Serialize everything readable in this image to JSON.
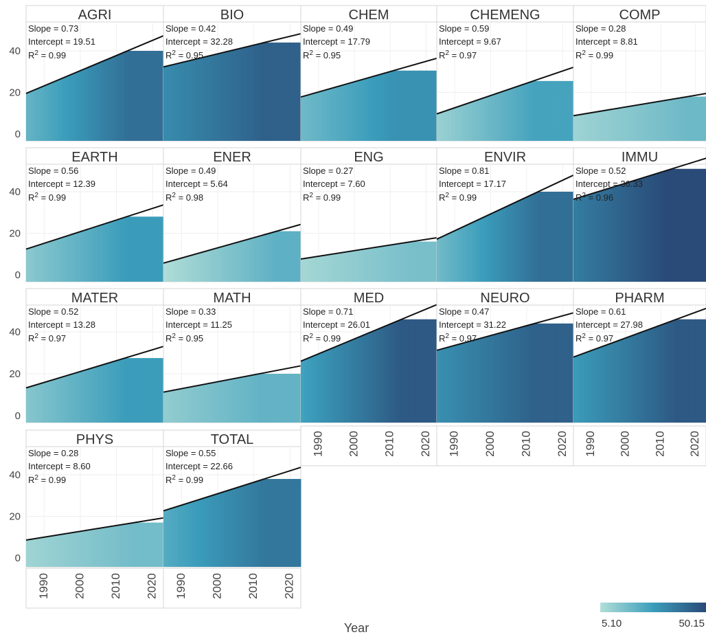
{
  "chart_data": {
    "type": "bar",
    "xlabel": "Year",
    "ylabel": "",
    "x_range": [
      1985,
      2023
    ],
    "ylim": [
      -3,
      55
    ],
    "y_ticks": [
      0,
      20,
      40
    ],
    "x_ticks": [
      1990,
      2000,
      2010,
      2020
    ],
    "stat_labels": {
      "slope": "Slope = ",
      "intercept": "Intercept = ",
      "r2_prefix": "R",
      "r2_sup": "2",
      "r2_suffix": " = "
    },
    "color_scale": {
      "min": 5.1,
      "max": 50.15,
      "min_label": "5.10",
      "max_label": "50.15",
      "low_color": "#b2ded8",
      "mid_color": "#3b9dbb",
      "high_color": "#2a4a78"
    },
    "panels": [
      {
        "name": "AGRI",
        "slope": "0.73",
        "intercept": "19.51",
        "r2": "0.99",
        "m": 0.73,
        "b": 19.51,
        "plateau": 40
      },
      {
        "name": "BIO",
        "slope": "0.42",
        "intercept": "32.28",
        "r2": "0.95",
        "m": 0.42,
        "b": 32.28,
        "plateau": 44
      },
      {
        "name": "CHEM",
        "slope": "0.49",
        "intercept": "17.79",
        "r2": "0.95",
        "m": 0.49,
        "b": 17.79,
        "plateau": 30.5
      },
      {
        "name": "CHEMENG",
        "slope": "0.59",
        "intercept": "9.67",
        "r2": "0.97",
        "m": 0.59,
        "b": 9.67,
        "plateau": 25.5
      },
      {
        "name": "COMP",
        "slope": "0.28",
        "intercept": "8.81",
        "r2": "0.99",
        "m": 0.28,
        "b": 8.81,
        "plateau": 18
      },
      {
        "name": "EARTH",
        "slope": "0.56",
        "intercept": "12.39",
        "r2": "0.99",
        "m": 0.56,
        "b": 12.39,
        "plateau": 28
      },
      {
        "name": "ENER",
        "slope": "0.49",
        "intercept": "5.64",
        "r2": "0.98",
        "m": 0.49,
        "b": 5.64,
        "plateau": 21
      },
      {
        "name": "ENG",
        "slope": "0.27",
        "intercept": "7.60",
        "r2": "0.99",
        "m": 0.27,
        "b": 7.6,
        "plateau": 16
      },
      {
        "name": "ENVIR",
        "slope": "0.81",
        "intercept": "17.17",
        "r2": "0.99",
        "m": 0.81,
        "b": 17.17,
        "plateau": 40
      },
      {
        "name": "IMMU",
        "slope": "0.52",
        "intercept": "36.33",
        "r2": "0.96",
        "m": 0.52,
        "b": 36.33,
        "plateau": 51
      },
      {
        "name": "MATER",
        "slope": "0.52",
        "intercept": "13.28",
        "r2": "0.97",
        "m": 0.52,
        "b": 13.28,
        "plateau": 27.5
      },
      {
        "name": "MATH",
        "slope": "0.33",
        "intercept": "11.25",
        "r2": "0.95",
        "m": 0.33,
        "b": 11.25,
        "plateau": 20
      },
      {
        "name": "MED",
        "slope": "0.71",
        "intercept": "26.01",
        "r2": "0.99",
        "m": 0.71,
        "b": 26.01,
        "plateau": 46
      },
      {
        "name": "NEURO",
        "slope": "0.47",
        "intercept": "31.22",
        "r2": "0.97",
        "m": 0.47,
        "b": 31.22,
        "plateau": 44
      },
      {
        "name": "PHARM",
        "slope": "0.61",
        "intercept": "27.98",
        "r2": "0.97",
        "m": 0.61,
        "b": 27.98,
        "plateau": 46
      },
      {
        "name": "PHYS",
        "slope": "0.28",
        "intercept": "8.60",
        "r2": "0.99",
        "m": 0.28,
        "b": 8.6,
        "plateau": 17
      },
      {
        "name": "TOTAL",
        "slope": "0.55",
        "intercept": "22.66",
        "r2": "0.99",
        "m": 0.55,
        "b": 22.66,
        "plateau": 38
      }
    ]
  }
}
